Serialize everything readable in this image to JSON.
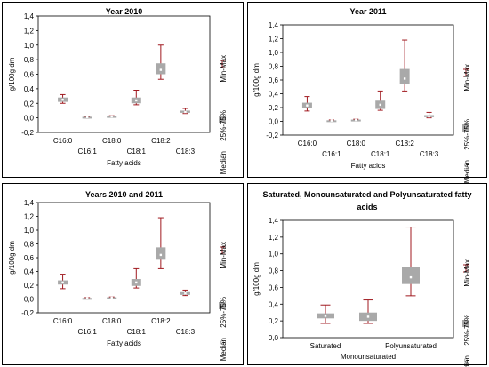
{
  "legend": {
    "whisker_label": "Min-Max",
    "box_label": "25%-75%",
    "median_label": "Median"
  },
  "colors": {
    "whisker": "#a0191f",
    "box": "#a9a9a9",
    "median": "#ffffff",
    "panel_border": "#000000"
  },
  "chart_data": [
    {
      "type": "box",
      "title": "Year 2010",
      "xlabel": "Fatty acids",
      "ylabel": "g/100g dm",
      "ylim": [
        -0.2,
        1.4
      ],
      "yticks": [
        "-0,2",
        "0,0",
        "0,2",
        "0,4",
        "0,6",
        "0,8",
        "1,0",
        "1,2",
        "1,4"
      ],
      "grid": false,
      "legend_position": "right, vertical",
      "categories": [
        "C16:0",
        "C16:1",
        "C18:0",
        "C18:1",
        "C18:2",
        "C18:3"
      ],
      "boxes": [
        {
          "min": 0.2,
          "q1": 0.22,
          "median": 0.25,
          "q3": 0.28,
          "max": 0.32
        },
        {
          "min": 0.0,
          "q1": 0.005,
          "median": 0.01,
          "q3": 0.015,
          "max": 0.02
        },
        {
          "min": 0.01,
          "q1": 0.015,
          "median": 0.02,
          "q3": 0.025,
          "max": 0.03
        },
        {
          "min": 0.18,
          "q1": 0.2,
          "median": 0.24,
          "q3": 0.28,
          "max": 0.38
        },
        {
          "min": 0.53,
          "q1": 0.6,
          "median": 0.66,
          "q3": 0.75,
          "max": 1.0
        },
        {
          "min": 0.06,
          "q1": 0.07,
          "median": 0.08,
          "q3": 0.1,
          "max": 0.13
        }
      ]
    },
    {
      "type": "box",
      "title": "Year 2011",
      "xlabel": "Fatty acids",
      "ylabel": "g/100g dm",
      "ylim": [
        -0.2,
        1.4
      ],
      "yticks": [
        "-0,2",
        "0,0",
        "0,2",
        "0,4",
        "0,6",
        "0,8",
        "1,0",
        "1,2",
        "1,4"
      ],
      "grid": false,
      "legend_position": "right, vertical",
      "categories": [
        "C16:0",
        "C16:1",
        "C18:0",
        "C18:1",
        "C18:2",
        "C18:3"
      ],
      "boxes": [
        {
          "min": 0.15,
          "q1": 0.19,
          "median": 0.23,
          "q3": 0.27,
          "max": 0.36
        },
        {
          "min": 0.0,
          "q1": 0.005,
          "median": 0.01,
          "q3": 0.015,
          "max": 0.02
        },
        {
          "min": 0.01,
          "q1": 0.015,
          "median": 0.02,
          "q3": 0.025,
          "max": 0.03
        },
        {
          "min": 0.16,
          "q1": 0.18,
          "median": 0.24,
          "q3": 0.3,
          "max": 0.44
        },
        {
          "min": 0.44,
          "q1": 0.54,
          "median": 0.62,
          "q3": 0.76,
          "max": 1.18
        },
        {
          "min": 0.05,
          "q1": 0.06,
          "median": 0.07,
          "q3": 0.09,
          "max": 0.13
        }
      ]
    },
    {
      "type": "box",
      "title": "Years 2010 and 2011",
      "xlabel": "Fatty acids",
      "ylabel": "g/100g dm",
      "ylim": [
        -0.2,
        1.4
      ],
      "yticks": [
        "-0,2",
        "0,0",
        "0,2",
        "0,4",
        "0,6",
        "0,8",
        "1,0",
        "1,2",
        "1,4"
      ],
      "grid": false,
      "legend_position": "right, vertical",
      "categories": [
        "C16:0",
        "C16:1",
        "C18:0",
        "C18:1",
        "C18:2",
        "C18:3"
      ],
      "boxes": [
        {
          "min": 0.15,
          "q1": 0.21,
          "median": 0.24,
          "q3": 0.27,
          "max": 0.36
        },
        {
          "min": 0.0,
          "q1": 0.005,
          "median": 0.01,
          "q3": 0.015,
          "max": 0.02
        },
        {
          "min": 0.01,
          "q1": 0.015,
          "median": 0.02,
          "q3": 0.025,
          "max": 0.03
        },
        {
          "min": 0.16,
          "q1": 0.19,
          "median": 0.24,
          "q3": 0.29,
          "max": 0.44
        },
        {
          "min": 0.44,
          "q1": 0.57,
          "median": 0.64,
          "q3": 0.75,
          "max": 1.18
        },
        {
          "min": 0.05,
          "q1": 0.06,
          "median": 0.08,
          "q3": 0.1,
          "max": 0.13
        }
      ]
    },
    {
      "type": "box",
      "title": "Saturated, Monounsaturated and Polyunsaturated fatty acids",
      "xlabel": "",
      "ylabel": "g/100g dm",
      "ylim": [
        0.0,
        1.4
      ],
      "yticks": [
        "0,0",
        "0,2",
        "0,4",
        "0,6",
        "0,8",
        "1,0",
        "1,2",
        "1,4"
      ],
      "grid": false,
      "legend_position": "right, vertical",
      "categories": [
        "Saturated",
        "Monounsaturated",
        "Polyunsaturated"
      ],
      "boxes": [
        {
          "min": 0.17,
          "q1": 0.23,
          "median": 0.26,
          "q3": 0.29,
          "max": 0.39
        },
        {
          "min": 0.17,
          "q1": 0.2,
          "median": 0.25,
          "q3": 0.3,
          "max": 0.45
        },
        {
          "min": 0.5,
          "q1": 0.64,
          "median": 0.72,
          "q3": 0.84,
          "max": 1.32
        }
      ]
    }
  ]
}
